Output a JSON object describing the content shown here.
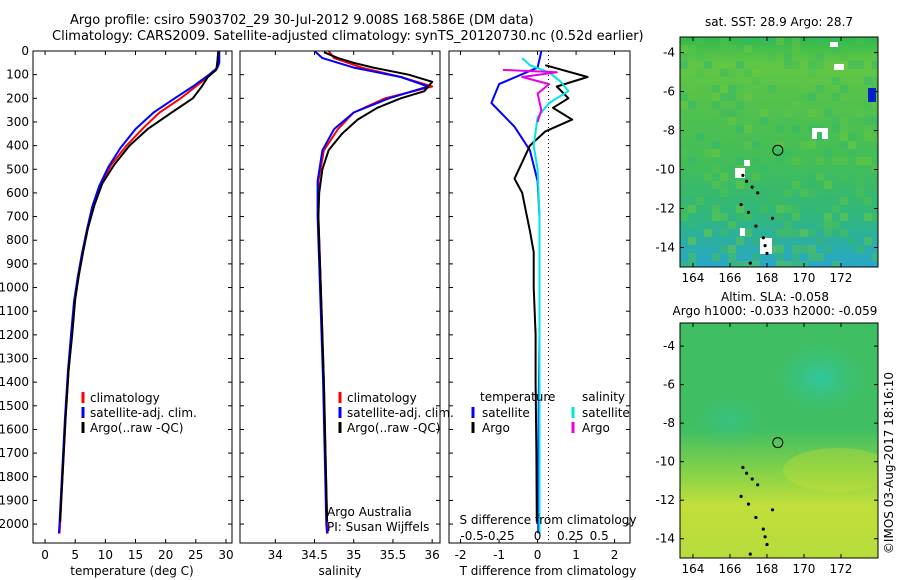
{
  "header": {
    "line1": "Argo profile: csiro 5903702_29 30-Jul-2012 9.008S 168.586E (DM data)",
    "line2": "Climatology: CARS2009. Satellite-adjusted climatology: synTS_20120730.nc (0.52d earlier)"
  },
  "colors": {
    "climatology": "#ff0000",
    "satellite": "#0000ff",
    "argo": "#000000",
    "sal_satellite": "#00e5e5",
    "sal_argo": "#e500e5",
    "grid": "#888888"
  },
  "side_text": "©IMOS 03-Aug-2017 18:16:10",
  "chart_data": [
    {
      "type": "line",
      "id": "temperature",
      "xlabel": "temperature (deg C)",
      "xlim": [
        -2,
        31
      ],
      "ylim": [
        2080,
        0
      ],
      "xticks": [
        0,
        5,
        10,
        15,
        20,
        25,
        30
      ],
      "yticks": [
        0,
        100,
        200,
        300,
        400,
        500,
        600,
        700,
        800,
        900,
        1000,
        1100,
        1200,
        1300,
        1400,
        1500,
        1600,
        1700,
        1800,
        1900,
        2000
      ],
      "legend": [
        "climatology",
        "satellite-adj. clim.",
        "Argo(..raw -QC)"
      ],
      "series": [
        {
          "name": "climatology",
          "color": "#ff0000",
          "points": [
            [
              28.7,
              0
            ],
            [
              28.7,
              40
            ],
            [
              28.6,
              70
            ],
            [
              27.0,
              110
            ],
            [
              25.0,
              150
            ],
            [
              22.5,
              200
            ],
            [
              19.0,
              260
            ],
            [
              16.5,
              320
            ],
            [
              13.5,
              400
            ],
            [
              11.0,
              480
            ],
            [
              9.3,
              560
            ],
            [
              8.0,
              650
            ],
            [
              7.0,
              750
            ],
            [
              6.2,
              850
            ],
            [
              5.5,
              950
            ],
            [
              4.9,
              1050
            ],
            [
              4.4,
              1200
            ],
            [
              3.9,
              1350
            ],
            [
              3.4,
              1550
            ],
            [
              2.9,
              1800
            ],
            [
              2.5,
              2000
            ],
            [
              2.4,
              2040
            ]
          ]
        },
        {
          "name": "satellite-adj. clim.",
          "color": "#0000ff",
          "points": [
            [
              28.9,
              0
            ],
            [
              28.9,
              50
            ],
            [
              28.6,
              70
            ],
            [
              27.2,
              100
            ],
            [
              24.5,
              150
            ],
            [
              21.5,
              200
            ],
            [
              18.0,
              260
            ],
            [
              15.0,
              330
            ],
            [
              12.5,
              410
            ],
            [
              10.5,
              490
            ],
            [
              9.0,
              570
            ],
            [
              7.8,
              660
            ],
            [
              6.9,
              760
            ],
            [
              6.1,
              860
            ],
            [
              5.4,
              960
            ],
            [
              4.8,
              1060
            ],
            [
              4.3,
              1200
            ],
            [
              3.8,
              1350
            ],
            [
              3.3,
              1550
            ],
            [
              2.8,
              1800
            ],
            [
              2.4,
              2000
            ],
            [
              2.3,
              2040
            ]
          ]
        },
        {
          "name": "Argo(..raw -QC)",
          "color": "#000000",
          "points": [
            [
              28.7,
              5
            ],
            [
              28.6,
              40
            ],
            [
              28.4,
              80
            ],
            [
              27.0,
              110
            ],
            [
              26.0,
              150
            ],
            [
              24.5,
              200
            ],
            [
              21.0,
              260
            ],
            [
              17.0,
              330
            ],
            [
              14.0,
              400
            ],
            [
              11.5,
              480
            ],
            [
              9.5,
              560
            ],
            [
              8.2,
              650
            ],
            [
              7.1,
              750
            ],
            [
              6.3,
              850
            ],
            [
              5.6,
              950
            ],
            [
              5.0,
              1050
            ],
            [
              4.5,
              1200
            ],
            [
              3.9,
              1350
            ],
            [
              3.4,
              1550
            ],
            [
              2.9,
              1800
            ],
            [
              2.5,
              1990
            ]
          ]
        }
      ]
    },
    {
      "type": "line",
      "id": "salinity",
      "xlabel": "salinity",
      "xlim": [
        33.55,
        36.1
      ],
      "ylim": [
        2080,
        0
      ],
      "xticks": [
        34,
        34.5,
        35,
        35.5,
        36
      ],
      "legend": [
        "climatology",
        "satellite-adj. clim.",
        "Argo(..raw -QC)"
      ],
      "annotation": [
        "Argo Australia",
        "PI: Susan Wijffels"
      ],
      "series": [
        {
          "name": "climatology",
          "color": "#ff0000",
          "points": [
            [
              34.68,
              0
            ],
            [
              34.75,
              30
            ],
            [
              35.1,
              70
            ],
            [
              35.6,
              110
            ],
            [
              36.0,
              150
            ],
            [
              35.4,
              200
            ],
            [
              35.0,
              260
            ],
            [
              34.8,
              330
            ],
            [
              34.62,
              420
            ],
            [
              34.55,
              550
            ],
            [
              34.55,
              700
            ],
            [
              34.57,
              900
            ],
            [
              34.59,
              1100
            ],
            [
              34.62,
              1400
            ],
            [
              34.64,
              1700
            ],
            [
              34.66,
              2000
            ],
            [
              34.67,
              2040
            ]
          ]
        },
        {
          "name": "satellite-adj. clim.",
          "color": "#0000ff",
          "points": [
            [
              34.5,
              0
            ],
            [
              34.6,
              30
            ],
            [
              35.0,
              70
            ],
            [
              35.6,
              110
            ],
            [
              35.95,
              150
            ],
            [
              35.45,
              200
            ],
            [
              35.0,
              260
            ],
            [
              34.75,
              330
            ],
            [
              34.6,
              420
            ],
            [
              34.54,
              550
            ],
            [
              34.54,
              700
            ],
            [
              34.56,
              900
            ],
            [
              34.58,
              1100
            ],
            [
              34.61,
              1400
            ],
            [
              34.63,
              1700
            ],
            [
              34.65,
              2000
            ],
            [
              34.66,
              2040
            ]
          ]
        },
        {
          "name": "Argo(..raw -QC)",
          "color": "#000000",
          "points": [
            [
              34.62,
              5
            ],
            [
              34.8,
              30
            ],
            [
              35.0,
              50
            ],
            [
              35.25,
              70
            ],
            [
              35.7,
              100
            ],
            [
              36.0,
              130
            ],
            [
              35.9,
              170
            ],
            [
              35.6,
              200
            ],
            [
              35.3,
              240
            ],
            [
              35.05,
              290
            ],
            [
              34.85,
              350
            ],
            [
              34.68,
              420
            ],
            [
              34.6,
              500
            ],
            [
              34.56,
              600
            ],
            [
              34.55,
              700
            ],
            [
              34.57,
              900
            ],
            [
              34.59,
              1100
            ],
            [
              34.62,
              1400
            ],
            [
              34.64,
              1700
            ],
            [
              34.66,
              1990
            ]
          ]
        }
      ]
    },
    {
      "type": "line",
      "id": "difference",
      "xlabel": "T difference from climatology",
      "xlabel_top": "S difference from climatology",
      "xlim": [
        -2.3,
        2.4
      ],
      "ylim": [
        2080,
        0
      ],
      "xticks": [
        -2,
        -1,
        0,
        1,
        2
      ],
      "xticks_salinity": [
        "-0.5",
        "-0.25",
        "0",
        "0.25",
        "0.5"
      ],
      "legend": {
        "temperature": {
          "title": "temperature",
          "items": [
            "satellite",
            "Argo"
          ]
        },
        "salinity": {
          "title": "salinity",
          "items": [
            "satellite",
            "Argo"
          ]
        }
      },
      "series": [
        {
          "name": "temperature satellite",
          "color": "#0000ff",
          "points": [
            [
              0.1,
              0
            ],
            [
              0.0,
              70
            ],
            [
              -1.0,
              140
            ],
            [
              -1.2,
              220
            ],
            [
              -0.6,
              320
            ],
            [
              -0.2,
              420
            ],
            [
              0.0,
              550
            ],
            [
              0.05,
              700
            ],
            [
              0.05,
              900
            ],
            [
              0.05,
              1200
            ],
            [
              0.03,
              1500
            ],
            [
              0.02,
              1800
            ],
            [
              0.02,
              2040
            ]
          ]
        },
        {
          "name": "temperature Argo",
          "color": "#000000",
          "points": [
            [
              0.2,
              60
            ],
            [
              1.3,
              110
            ],
            [
              0.5,
              150
            ],
            [
              0.8,
              200
            ],
            [
              0.4,
              240
            ],
            [
              0.9,
              290
            ],
            [
              0.2,
              340
            ],
            [
              -0.2,
              400
            ],
            [
              -0.4,
              470
            ],
            [
              -0.6,
              540
            ],
            [
              -0.4,
              600
            ],
            [
              -0.3,
              680
            ],
            [
              -0.2,
              760
            ],
            [
              -0.1,
              850
            ],
            [
              -0.1,
              1000
            ],
            [
              -0.05,
              1200
            ],
            [
              -0.05,
              1400
            ],
            [
              -0.03,
              1700
            ],
            [
              -0.02,
              1990
            ]
          ]
        },
        {
          "name": "salinity satellite",
          "color": "#00e5e5",
          "points": [
            [
              -0.4,
              30
            ],
            [
              -0.2,
              60
            ],
            [
              0.3,
              90
            ],
            [
              0.6,
              130
            ],
            [
              0.8,
              170
            ],
            [
              0.3,
              220
            ],
            [
              0.0,
              280
            ],
            [
              -0.1,
              400
            ],
            [
              0.0,
              500
            ],
            [
              0.05,
              700
            ],
            [
              0.05,
              1000
            ],
            [
              0.05,
              1400
            ],
            [
              0.05,
              2040
            ]
          ]
        },
        {
          "name": "salinity Argo",
          "color": "#e500e5",
          "points": [
            [
              -0.9,
              80
            ],
            [
              0.5,
              90
            ],
            [
              -0.4,
              110
            ],
            [
              0.3,
              140
            ],
            [
              0.0,
              180
            ],
            [
              0.1,
              250
            ],
            [
              0.0,
              300
            ]
          ]
        }
      ]
    },
    {
      "type": "heatmap",
      "id": "sst-map",
      "title": "sat. SST: 28.9 Argo: 28.7",
      "xlim": [
        163.3,
        174.0
      ],
      "ylim": [
        -15.0,
        -3.2
      ],
      "xticks": [
        164,
        166,
        168,
        170,
        172
      ],
      "yticks": [
        -4,
        -6,
        -8,
        -10,
        -12,
        -14
      ],
      "marker": [
        168.586,
        -9.008
      ]
    },
    {
      "type": "heatmap",
      "id": "sla-map",
      "title": "Altim. SLA: -0.058",
      "subtitle": "Argo h1000: -0.033 h2000: -0.059",
      "xlim": [
        163.3,
        174.0
      ],
      "ylim": [
        -15.0,
        -2.8
      ],
      "xticks": [
        164,
        166,
        168,
        170,
        172
      ],
      "yticks": [
        -4,
        -6,
        -8,
        -10,
        -12,
        -14
      ],
      "marker": [
        168.586,
        -9.008
      ]
    }
  ]
}
